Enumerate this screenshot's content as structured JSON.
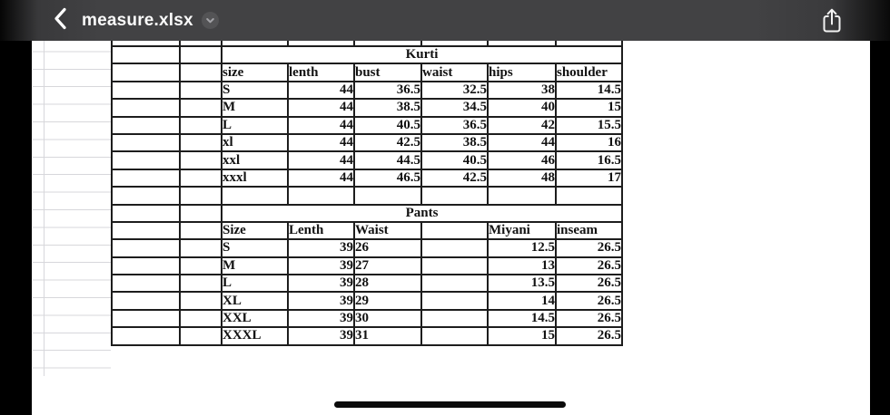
{
  "toolbar": {
    "back_icon": "chevron-left",
    "title": "measure.xlsx",
    "title_menu_icon": "chevron-down",
    "share_icon": "share-up-arrow"
  },
  "spreadsheet": {
    "sections": [
      {
        "title": "Kurti",
        "columns": [
          "size",
          "lenth",
          "bust",
          "waist",
          "hips",
          "shoulder"
        ],
        "rows": [
          [
            "S",
            "44",
            "36.5",
            "32.5",
            "38",
            "14.5"
          ],
          [
            "M",
            "44",
            "38.5",
            "34.5",
            "40",
            "15"
          ],
          [
            "L",
            "44",
            "40.5",
            "36.5",
            "42",
            "15.5"
          ],
          [
            "xl",
            "44",
            "42.5",
            "38.5",
            "44",
            "16"
          ],
          [
            "xxl",
            "44",
            "44.5",
            "40.5",
            "46",
            "16.5"
          ],
          [
            "xxxl",
            "44",
            "46.5",
            "42.5",
            "48",
            "17"
          ]
        ]
      },
      {
        "title": "Pants",
        "columns": [
          "Size",
          "Lenth",
          "Waist",
          "",
          "Miyani",
          "inseam"
        ],
        "rows": [
          [
            "S",
            "39",
            "26",
            "",
            "12.5",
            "26.5"
          ],
          [
            "M",
            "39",
            "27",
            "",
            "13",
            "26.5"
          ],
          [
            "L",
            "39",
            "28",
            "",
            "13.5",
            "26.5"
          ],
          [
            "XL",
            "39",
            "29",
            "",
            "14",
            "26.5"
          ],
          [
            "XXL",
            "39",
            "30",
            "",
            "14.5",
            "26.5"
          ],
          [
            "XXXL",
            "39",
            "31",
            "",
            "15",
            "26.5"
          ]
        ]
      }
    ]
  },
  "colors": {
    "toolbar_bg": "#414143",
    "toolbar_text": "#fafafa",
    "table_border": "#1d1d1d",
    "gridline": "#d7d7db",
    "page_bg": "#ffffff",
    "bezel": "#000000"
  }
}
